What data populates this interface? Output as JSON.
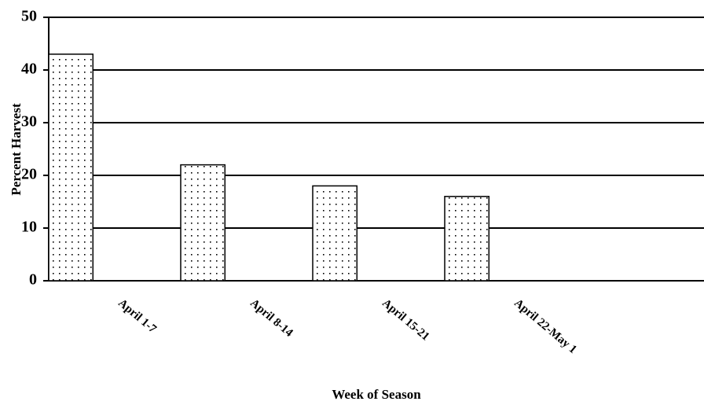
{
  "chart_data": {
    "type": "bar",
    "categories": [
      "April 1-7",
      "April 8-14",
      "April 15-21",
      "April 22-May 1",
      null
    ],
    "values": [
      43,
      22,
      18,
      16,
      null
    ],
    "ylim": [
      0,
      50
    ],
    "yticks": [
      0,
      10,
      20,
      30,
      40,
      50
    ],
    "grid": true,
    "x_label": "Week of Season",
    "y_label": "Percent Harvest",
    "color": "#ffffff"
  }
}
